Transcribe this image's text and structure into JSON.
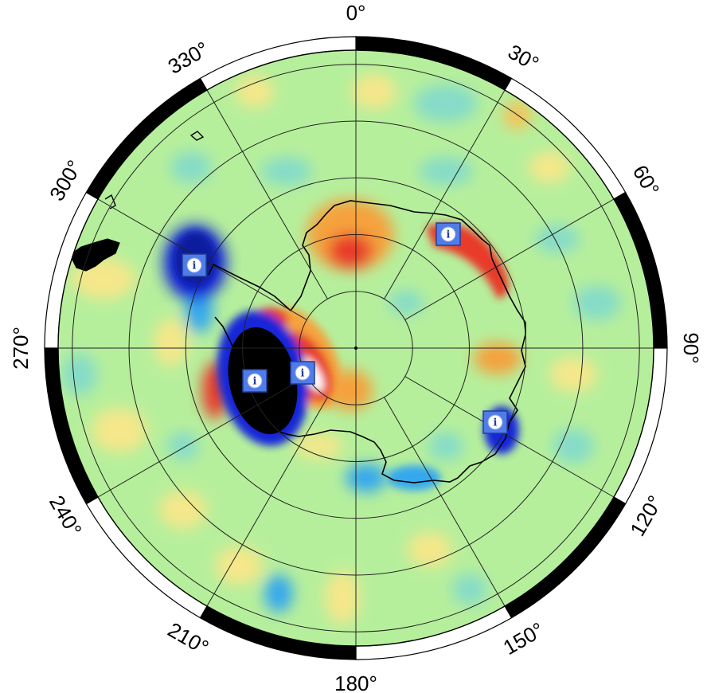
{
  "map": {
    "projection": "south-polar-stereographic",
    "longitude_labels": [
      {
        "lon": 0,
        "text": "0°"
      },
      {
        "lon": 30,
        "text": "30°"
      },
      {
        "lon": 60,
        "text": "60°"
      },
      {
        "lon": 90,
        "text": "90°"
      },
      {
        "lon": 120,
        "text": "120°"
      },
      {
        "lon": 150,
        "text": "150°"
      },
      {
        "lon": 180,
        "text": "180°"
      },
      {
        "lon": 210,
        "text": "210°"
      },
      {
        "lon": 240,
        "text": "240°"
      },
      {
        "lon": 270,
        "text": "270°"
      },
      {
        "lon": 300,
        "text": "300°"
      },
      {
        "lon": 330,
        "text": "330°"
      }
    ],
    "graticule": {
      "meridian_step_deg": 30,
      "parallel_rings": 5,
      "frame_style": "alternating black and white"
    },
    "colors": {
      "background": "#b6ef9c",
      "strong_negative": "#000000",
      "negative": "#1428d8",
      "weak_negative": "#36a8ee",
      "slight_negative": "#86dcc8",
      "slight_positive": "#f5e78a",
      "positive": "#f5a23e",
      "strong_positive": "#e83a2c",
      "peak_positive": "#ffffff",
      "coastline": "#000000",
      "marker_fill": "#4f7ce8",
      "marker_border": "#1f3f9a"
    },
    "info_markers": [
      {
        "id": "info-marker-1",
        "icon": "info-icon",
        "symbol": "i"
      },
      {
        "id": "info-marker-2",
        "icon": "info-icon",
        "symbol": "i"
      },
      {
        "id": "info-marker-3",
        "icon": "info-icon",
        "symbol": "i"
      },
      {
        "id": "info-marker-4",
        "icon": "info-icon",
        "symbol": "i"
      },
      {
        "id": "info-marker-5",
        "icon": "info-icon",
        "symbol": "i"
      }
    ]
  }
}
